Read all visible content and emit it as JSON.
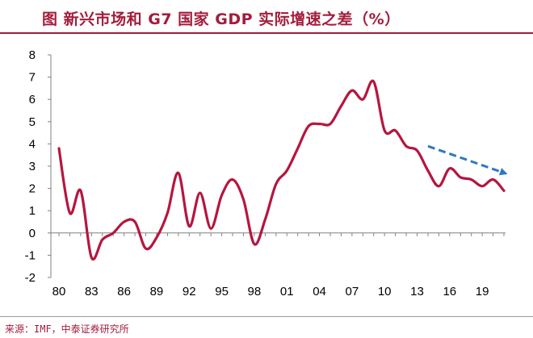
{
  "title": "图 新兴市场和 G7 国家 GDP 实际增速之差（%）",
  "source": "来源：IMF，中泰证券研究所",
  "colors": {
    "line": "#b5163f",
    "arrow": "#2e78c4",
    "accent": "#a31d3c"
  },
  "chart_data": {
    "type": "line",
    "title": "",
    "xlabel": "",
    "ylabel": "",
    "xlim": [
      1980,
      2021
    ],
    "ylim": [
      -2,
      8
    ],
    "x_ticks": [
      "80",
      "83",
      "86",
      "89",
      "92",
      "95",
      "98",
      "01",
      "04",
      "07",
      "10",
      "13",
      "16",
      "19"
    ],
    "x_tick_years": [
      1980,
      1983,
      1986,
      1989,
      1992,
      1995,
      1998,
      2001,
      2004,
      2007,
      2010,
      2013,
      2016,
      2019
    ],
    "y_ticks": [
      "-2",
      "-1",
      "0",
      "1",
      "2",
      "3",
      "4",
      "5",
      "6",
      "7",
      "8"
    ],
    "y_tick_values": [
      -2,
      -1,
      0,
      1,
      2,
      3,
      4,
      5,
      6,
      7,
      8
    ],
    "grid": false,
    "series": [
      {
        "x": [
          1980,
          1981,
          1982,
          1983,
          1984,
          1985,
          1986,
          1987,
          1988,
          1989,
          1990,
          1991,
          1992,
          1993,
          1994,
          1995,
          1996,
          1997,
          1998,
          1999,
          2000,
          2001,
          2002,
          2003,
          2004,
          2005,
          2006,
          2007,
          2008,
          2009,
          2010,
          2011,
          2012,
          2013,
          2014,
          2015,
          2016,
          2017,
          2018,
          2019,
          2020,
          2021
        ],
        "y": [
          3.8,
          0.9,
          1.9,
          -1.1,
          -0.3,
          0.0,
          0.5,
          0.5,
          -0.7,
          -0.2,
          0.9,
          2.7,
          0.3,
          1.8,
          0.2,
          1.7,
          2.4,
          1.5,
          -0.5,
          0.6,
          2.2,
          2.8,
          3.8,
          4.8,
          4.9,
          4.9,
          5.7,
          6.4,
          6.0,
          6.8,
          4.6,
          4.6,
          3.9,
          3.7,
          2.8,
          2.1,
          2.9,
          2.5,
          2.4,
          2.1,
          2.4,
          1.9
        ]
      }
    ],
    "annotations": [
      {
        "type": "trend-arrow",
        "from": [
          2014,
          3.9
        ],
        "to": [
          2021,
          2.7
        ]
      }
    ]
  }
}
